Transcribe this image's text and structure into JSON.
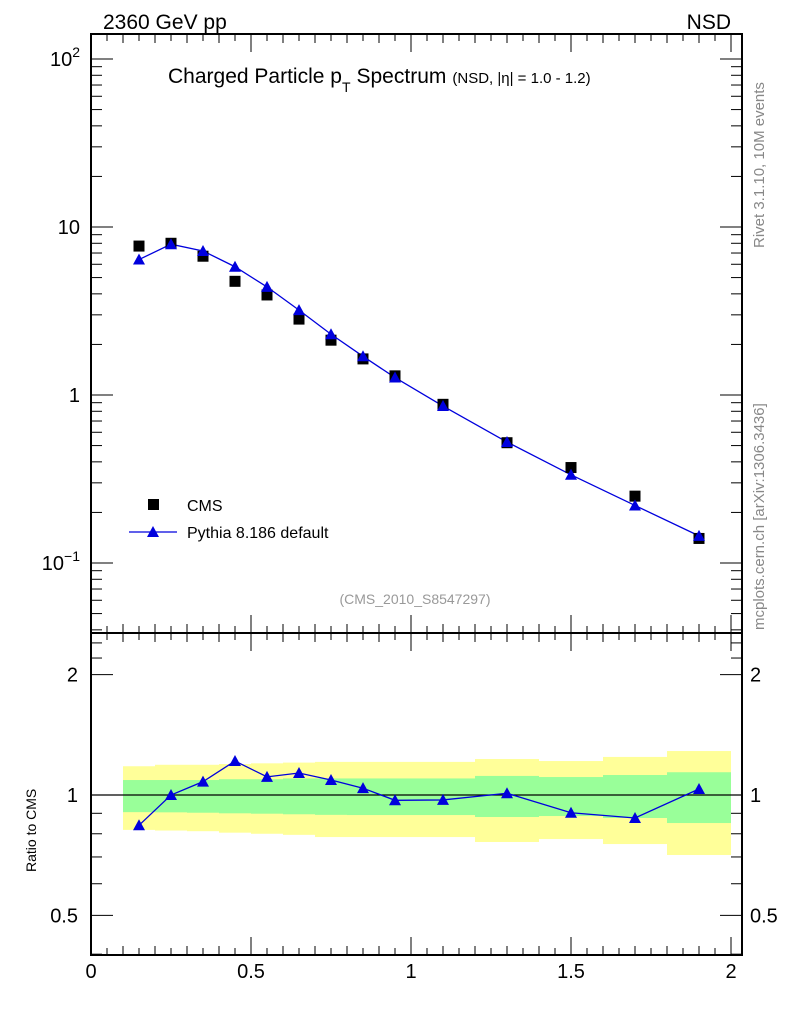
{
  "header": {
    "left": "2360 GeV pp",
    "right": "NSD"
  },
  "side_text": {
    "top": "Rivet 3.1.10,  10M events",
    "bottom": "mcplots.cern.ch [arXiv:1306.3436]"
  },
  "colors": {
    "data": "#000000",
    "mc": "#0000dd",
    "band_inner": "#99ff99",
    "band_outer": "#ffff99",
    "watermark": "#999999"
  },
  "chart_data": [
    {
      "type": "scatter",
      "title": "Charged Particle p",
      "title_sub": "T",
      "title_suffix": "Spectrum",
      "title_note": "(NSD, |η| = 1.0 - 1.2)",
      "watermark": "(CMS_2010_S8547297)",
      "xlim": [
        0,
        2.03
      ],
      "ylim": [
        0.039,
        141
      ],
      "yscale": "log",
      "ytick_labels": [
        {
          "v": 100,
          "base": "10",
          "exp": "2"
        },
        {
          "v": 10,
          "base": "10",
          "exp": ""
        },
        {
          "v": 1,
          "base": "1",
          "exp": ""
        },
        {
          "v": 0.1,
          "base": "10",
          "exp": "−1"
        }
      ],
      "legend": {
        "placement": "bottom-left",
        "entries": [
          "CMS",
          "Pythia 8.186 default"
        ]
      },
      "x": [
        0.15,
        0.25,
        0.35,
        0.45,
        0.55,
        0.65,
        0.75,
        0.85,
        0.95,
        1.1,
        1.3,
        1.5,
        1.7,
        1.9
      ],
      "series": [
        {
          "name": "CMS",
          "marker": "square",
          "values": [
            7.7,
            8.0,
            6.7,
            4.75,
            3.94,
            2.83,
            2.12,
            1.64,
            1.3,
            0.88,
            0.52,
            0.37,
            0.25,
            0.14
          ]
        },
        {
          "name": "Pythia 8.186 default",
          "marker": "triangle",
          "values": [
            6.4,
            7.9,
            7.2,
            5.8,
            4.4,
            3.2,
            2.3,
            1.7,
            1.27,
            0.86,
            0.525,
            0.335,
            0.22,
            0.145
          ]
        }
      ]
    },
    {
      "type": "line",
      "ylabel": "Ratio to CMS",
      "yscale": "log",
      "ylim": [
        0.398,
        2.56
      ],
      "xlim": [
        0,
        2.03
      ],
      "ytick_labels": [
        "0.5",
        "1",
        "2"
      ],
      "ytick_values": [
        0.5,
        1,
        2
      ],
      "xtick_labels": [
        "0",
        "0.5",
        "1",
        "1.5",
        "2"
      ],
      "xtick_values": [
        0,
        0.5,
        1,
        1.5,
        2
      ],
      "x": [
        0.15,
        0.25,
        0.35,
        0.45,
        0.55,
        0.65,
        0.75,
        0.85,
        0.95,
        1.1,
        1.3,
        1.5,
        1.7,
        1.9
      ],
      "ratio": [
        0.84,
        1.0,
        1.08,
        1.216,
        1.11,
        1.135,
        1.09,
        1.04,
        0.97,
        0.972,
        1.01,
        0.903,
        0.876,
        1.035
      ],
      "bands": {
        "bin_edges": [
          0.1,
          0.2,
          0.3,
          0.4,
          0.5,
          0.6,
          0.7,
          0.8,
          0.9,
          1.0,
          1.2,
          1.4,
          1.6,
          1.8,
          2.0
        ],
        "outer_up": [
          1.18,
          1.19,
          1.19,
          1.195,
          1.2,
          1.205,
          1.21,
          1.21,
          1.21,
          1.21,
          1.23,
          1.216,
          1.245,
          1.288
        ],
        "inner_up": [
          1.09,
          1.09,
          1.09,
          1.095,
          1.095,
          1.1,
          1.1,
          1.1,
          1.1,
          1.1,
          1.116,
          1.109,
          1.122,
          1.14
        ],
        "inner_lo": [
          0.906,
          0.905,
          0.903,
          0.9,
          0.898,
          0.895,
          0.892,
          0.891,
          0.891,
          0.891,
          0.881,
          0.886,
          0.876,
          0.851
        ],
        "outer_lo": [
          0.818,
          0.815,
          0.812,
          0.805,
          0.8,
          0.795,
          0.785,
          0.785,
          0.785,
          0.785,
          0.763,
          0.776,
          0.754,
          0.708
        ]
      }
    }
  ]
}
